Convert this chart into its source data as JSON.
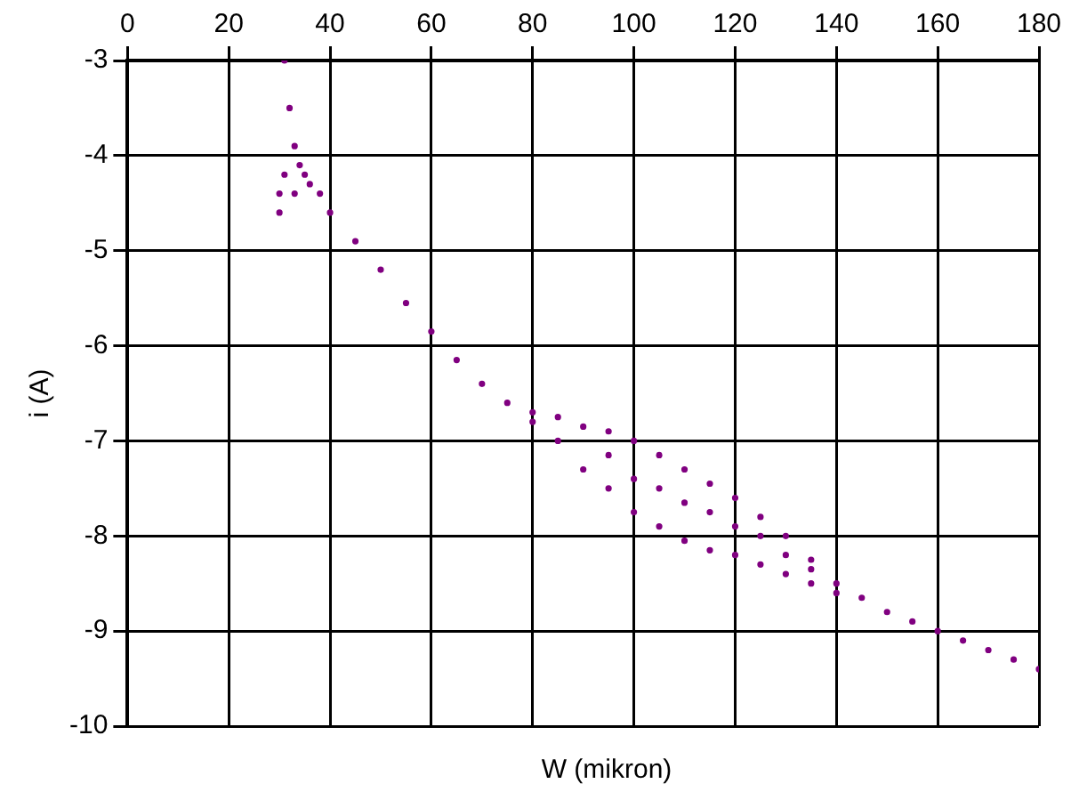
{
  "chart_data": {
    "type": "scatter",
    "xlabel": "W (mikron)",
    "ylabel": "i (A)",
    "xlim": [
      0,
      180
    ],
    "xticks": [
      0,
      20,
      40,
      60,
      80,
      100,
      120,
      140,
      160,
      180
    ],
    "ylim": [
      -10,
      -3
    ],
    "yticks": [
      -10,
      -9,
      -8,
      -7,
      -6,
      -5,
      -4,
      -3
    ],
    "grid": true,
    "marker": "circle",
    "legend": false,
    "series": [
      {
        "color": "#800080",
        "x": [
          31,
          32,
          33,
          35,
          38,
          40,
          45,
          50,
          55,
          60,
          65,
          70,
          75,
          80,
          30,
          30,
          31,
          33,
          34,
          36,
          80,
          85,
          90,
          95,
          100,
          105,
          110,
          115,
          120,
          125,
          130,
          135,
          140,
          145,
          150,
          155,
          160,
          165,
          170,
          175,
          180,
          85,
          90,
          95,
          100,
          105,
          110,
          115,
          120,
          125,
          130,
          135,
          140,
          95,
          100,
          105,
          110,
          115,
          120,
          125,
          130,
          135
        ],
        "values": [
          -3.0,
          -3.5,
          -3.9,
          -4.2,
          -4.4,
          -4.6,
          -4.9,
          -5.2,
          -5.55,
          -5.85,
          -6.15,
          -6.4,
          -6.6,
          -6.8,
          -4.4,
          -4.6,
          -4.2,
          -4.4,
          -4.1,
          -4.3,
          -6.7,
          -6.75,
          -6.85,
          -6.9,
          -7.0,
          -7.15,
          -7.3,
          -7.45,
          -7.6,
          -7.8,
          -8.0,
          -8.25,
          -8.5,
          -8.65,
          -8.8,
          -8.9,
          -9.0,
          -9.1,
          -9.2,
          -9.3,
          -9.4,
          -7.0,
          -7.3,
          -7.5,
          -7.75,
          -7.9,
          -8.05,
          -8.15,
          -8.2,
          -8.3,
          -8.4,
          -8.5,
          -8.6,
          -7.15,
          -7.4,
          -7.5,
          -7.65,
          -7.75,
          -7.9,
          -8.0,
          -8.2,
          -8.35
        ]
      }
    ]
  }
}
